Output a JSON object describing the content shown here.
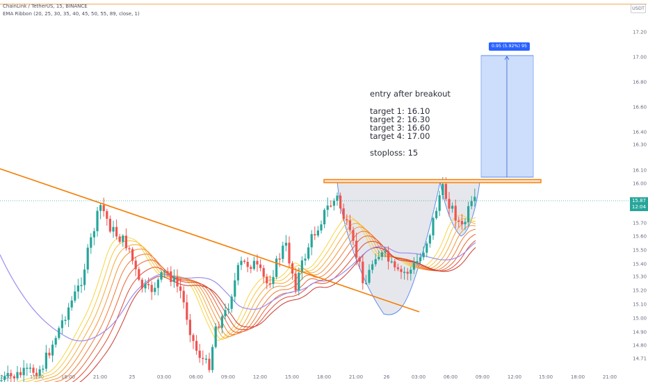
{
  "header": {
    "symbol_line": "ChainLink / TetherUS, 15, BINANCE",
    "indicator_line": "EMA Ribbon (20, 25, 30, 35, 40, 45, 50, 55, 89, close, 1)",
    "currency_badge": "USDT"
  },
  "annotations": {
    "title": "entry after breakout",
    "targets": [
      "target 1: 16.10",
      "target 2: 16.30",
      "target 3: 16.60",
      "target 4: 17.00"
    ],
    "stoploss": "stoploss: 15",
    "measure_label": "0.95 (5.92%) 95"
  },
  "price_badge": {
    "price": "15.87",
    "countdown": "12:04"
  },
  "colors": {
    "up": "#26a69a",
    "down": "#ef5350",
    "trendline": "#f57c00",
    "cup_fill": "#d1d4dc",
    "cup_stroke": "#5b8def",
    "target_box": "#bbd3fa",
    "measure_label_bg": "#2962ff",
    "ema89": "#9c8cf0",
    "price_line": "#26a69a"
  },
  "chart_data": {
    "type": "candlestick",
    "y_ticks": [
      "17.20",
      "17.00",
      "16.80",
      "16.60",
      "16.40",
      "16.30",
      "16.10",
      "16.00",
      "15.80",
      "15.70",
      "15.60",
      "15.50",
      "15.40",
      "15.30",
      "15.20",
      "15.10",
      "15.00",
      "14.90",
      "14.80",
      "14.71"
    ],
    "x_ticks": [
      "12:00",
      "15:00",
      "18:00",
      "21:00",
      "25",
      "03:00",
      "06:00",
      "09:00",
      "12:00",
      "15:00",
      "18:00",
      "21:00",
      "26",
      "03:00",
      "06:00",
      "09:00",
      "12:00",
      "15:00",
      "18:00",
      "21:00"
    ],
    "last_price": 15.87,
    "resistance_level": 16.01,
    "target_level": 17.0,
    "measured_move": 0.95,
    "measured_move_pct": 5.92
  }
}
